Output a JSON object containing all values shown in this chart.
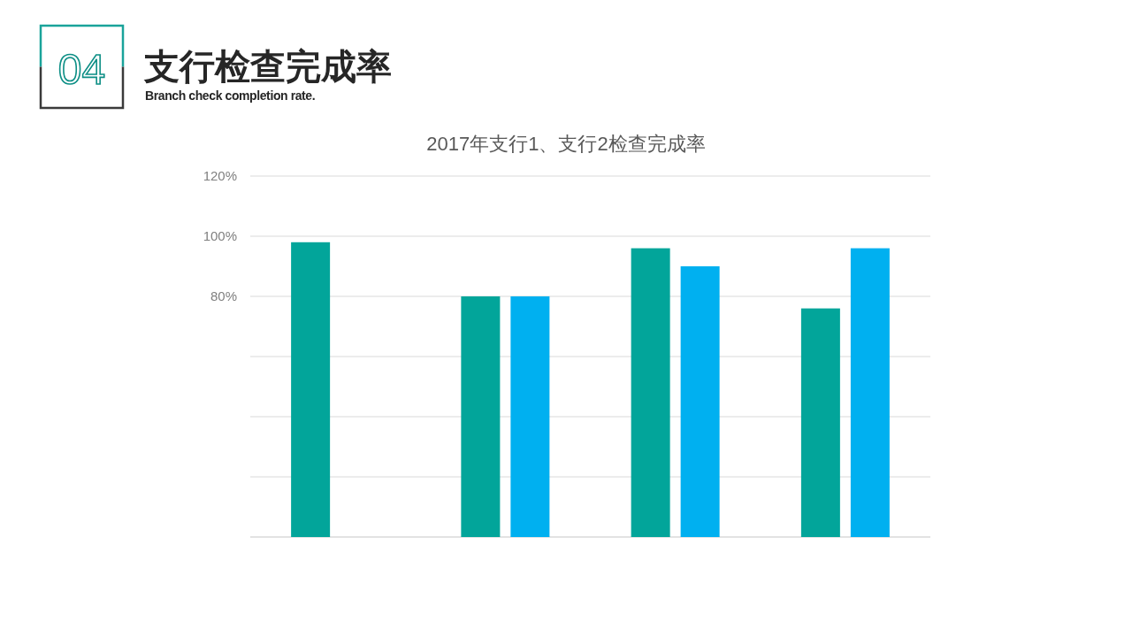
{
  "chart_data": {
    "type": "bar",
    "title": "2017年支行1、支行2检查完成率",
    "annotations": [
      "04",
      "支行检查完成率",
      "Branch check completion rate."
    ],
    "categories": [
      null,
      null,
      null,
      null
    ],
    "series": [
      {
        "color": "#02a59a",
        "values": [
          98,
          80,
          96,
          76
        ]
      },
      {
        "color": "#00b0f0",
        "values": [
          null,
          80,
          90,
          96
        ]
      }
    ],
    "ylim": [
      0,
      120
    ],
    "yticks": [
      {
        "value": 0,
        "label": null
      },
      {
        "value": 20,
        "label": null
      },
      {
        "value": 40,
        "label": null
      },
      {
        "value": 60,
        "label": null
      },
      {
        "value": 80,
        "label": "80%"
      },
      {
        "value": 100,
        "label": "100%"
      },
      {
        "value": 120,
        "label": "120%"
      }
    ],
    "grid": "y"
  }
}
